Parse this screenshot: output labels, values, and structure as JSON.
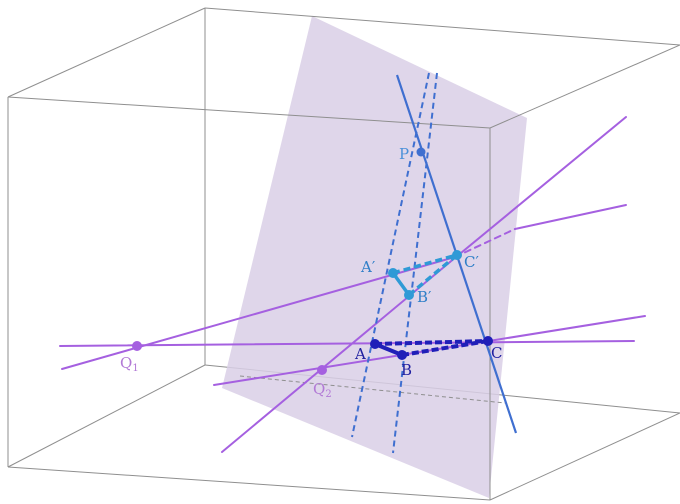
{
  "labels": {
    "P": "P",
    "A_prime": "A′",
    "B_prime": "B′",
    "C_prime": "C′",
    "A": "A",
    "B": "B",
    "C": "C",
    "Q1": "Q",
    "Q1_sub": "1",
    "Q2": "Q",
    "Q2_sub": "2"
  },
  "colors": {
    "box_edge": "#8f8f8f",
    "plane_fill": "#d9cfe6",
    "purple_line": "#a560e0",
    "dashed_ray": "#3f6fd0",
    "triangle_top": "#2f9ad6",
    "triangle_bottom": "#1f1fb8",
    "label_top": "#4a90d9",
    "label_bottom": "#2020a0",
    "label_q": "#b27ad6"
  }
}
